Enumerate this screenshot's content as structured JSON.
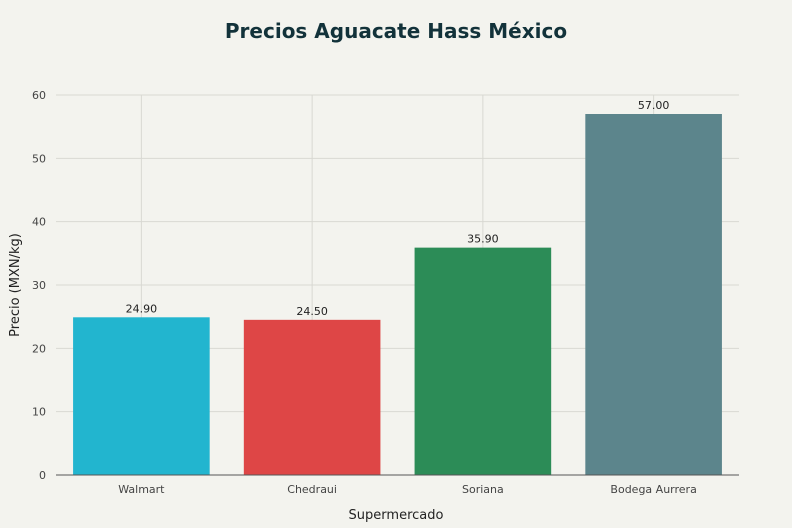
{
  "chart_data": {
    "type": "bar",
    "title": "Precios Aguacate Hass México",
    "xlabel": "Supermercado",
    "ylabel": "Precio (MXN/kg)",
    "categories": [
      "Walmart",
      "Chedraui",
      "Soriana",
      "Bodega Aurrera"
    ],
    "values": [
      24.9,
      24.5,
      35.9,
      57.0
    ],
    "data_labels": [
      "24.90",
      "24.50",
      "35.90",
      "57.00"
    ],
    "colors": [
      "#22b5cf",
      "#de4646",
      "#2c8c57",
      "#5c858c"
    ],
    "ylim": [
      0,
      60
    ],
    "yticks": [
      0,
      10,
      20,
      30,
      40,
      50,
      60
    ],
    "grid": true,
    "legend": "none"
  }
}
